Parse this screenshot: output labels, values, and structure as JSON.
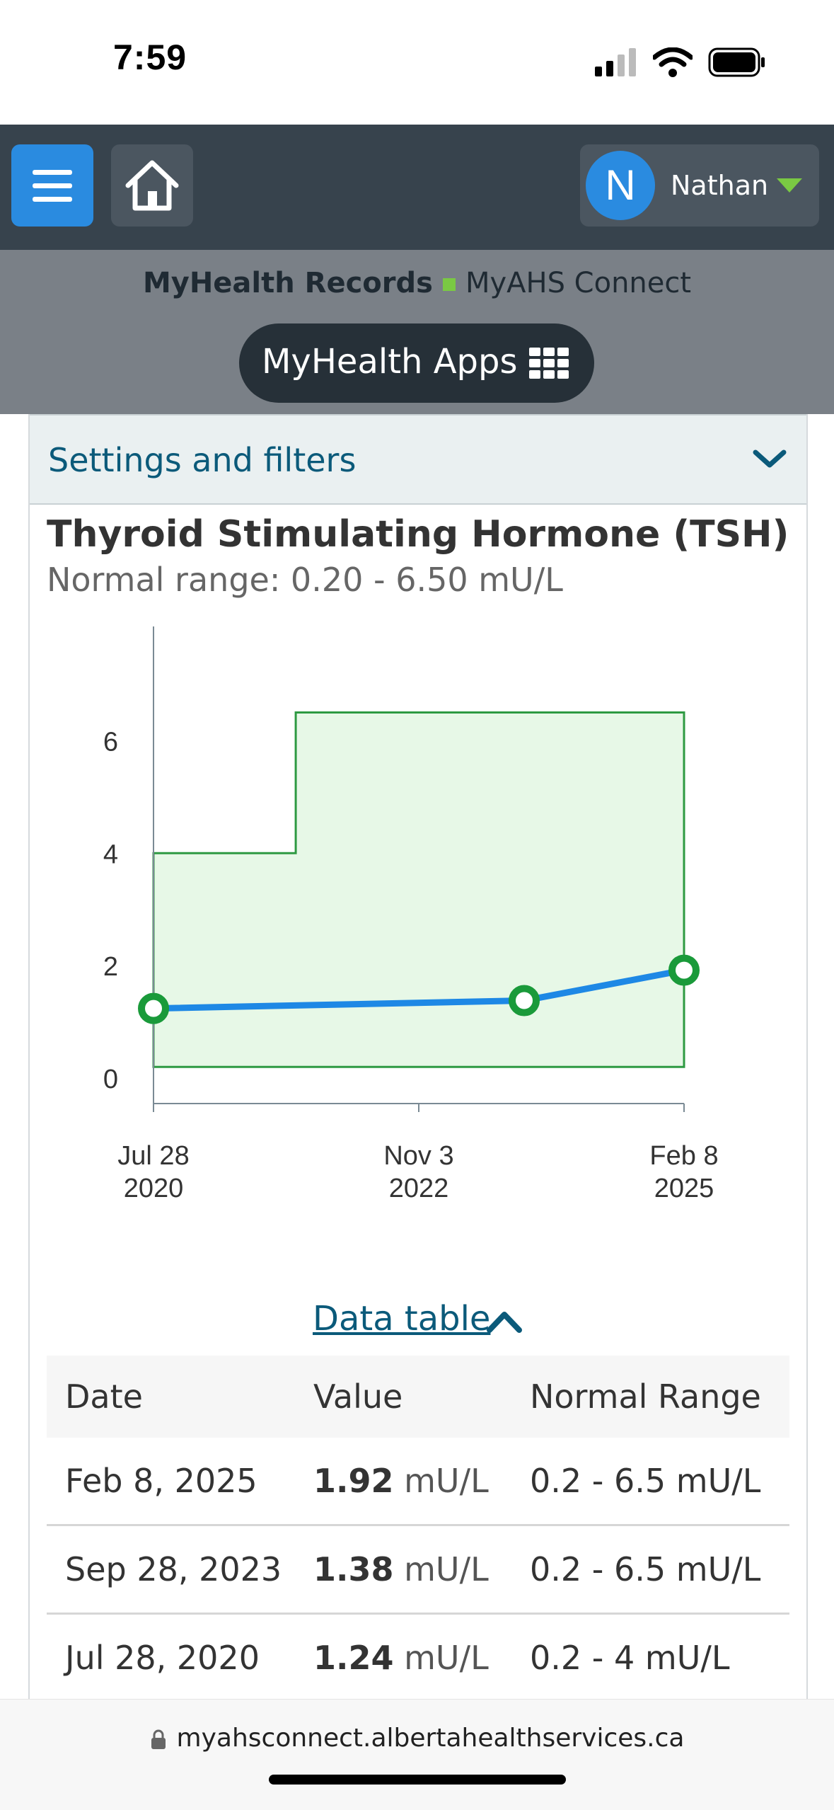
{
  "status": {
    "time": "7:59"
  },
  "nav": {
    "user_initial": "N",
    "user_name": "Nathan"
  },
  "subnav": {
    "records": "MyHealth Records",
    "connect": "MyAHS Connect",
    "apps": "MyHealth Apps"
  },
  "settings": {
    "label": "Settings and filters"
  },
  "test": {
    "title": "Thyroid Stimulating Hormone (TSH)",
    "normal_range": "Normal range: 0.20 - 6.50 mU/L"
  },
  "chart_data": {
    "type": "line",
    "series": [
      {
        "x": [
          "2020-07-28",
          "2023-09-28",
          "2025-02-08"
        ],
        "values": [
          1.24,
          1.38,
          1.92
        ]
      }
    ],
    "normal_range_bands": [
      {
        "from": "2020-07-28",
        "to": "2021-10-15",
        "low": 0.2,
        "high": 4
      },
      {
        "from": "2021-10-15",
        "to": "2025-02-08",
        "low": 0.2,
        "high": 6.5
      }
    ],
    "yticks": [
      "0",
      "2",
      "4",
      "6"
    ],
    "xticks": [
      [
        "Jul 28",
        "2020"
      ],
      [
        "Nov 3",
        "2022"
      ],
      [
        "Feb 8",
        "2025"
      ]
    ],
    "ylim": [
      -0.4,
      7.4
    ],
    "colors": {
      "line": "#1e88e5",
      "marker": "#1a9a3a",
      "band_fill": "#e7f8e7",
      "band_stroke": "#2e9a42"
    }
  },
  "data_table": {
    "toggle": "Data table",
    "headers": [
      "Date",
      "Value",
      "Normal Range"
    ],
    "rows": [
      {
        "date": "Feb 8, 2025",
        "value": "1.92",
        "unit": "mU/L",
        "range": "0.2 - 6.5 mU/L"
      },
      {
        "date": "Sep 28, 2023",
        "value": "1.38",
        "unit": "mU/L",
        "range": "0.2 - 6.5 mU/L"
      },
      {
        "date": "Jul 28, 2020",
        "value": "1.24",
        "unit": "mU/L",
        "range": "0.2 - 4 mU/L"
      }
    ]
  },
  "browser": {
    "url": "myahsconnect.albertahealthservices.ca"
  }
}
